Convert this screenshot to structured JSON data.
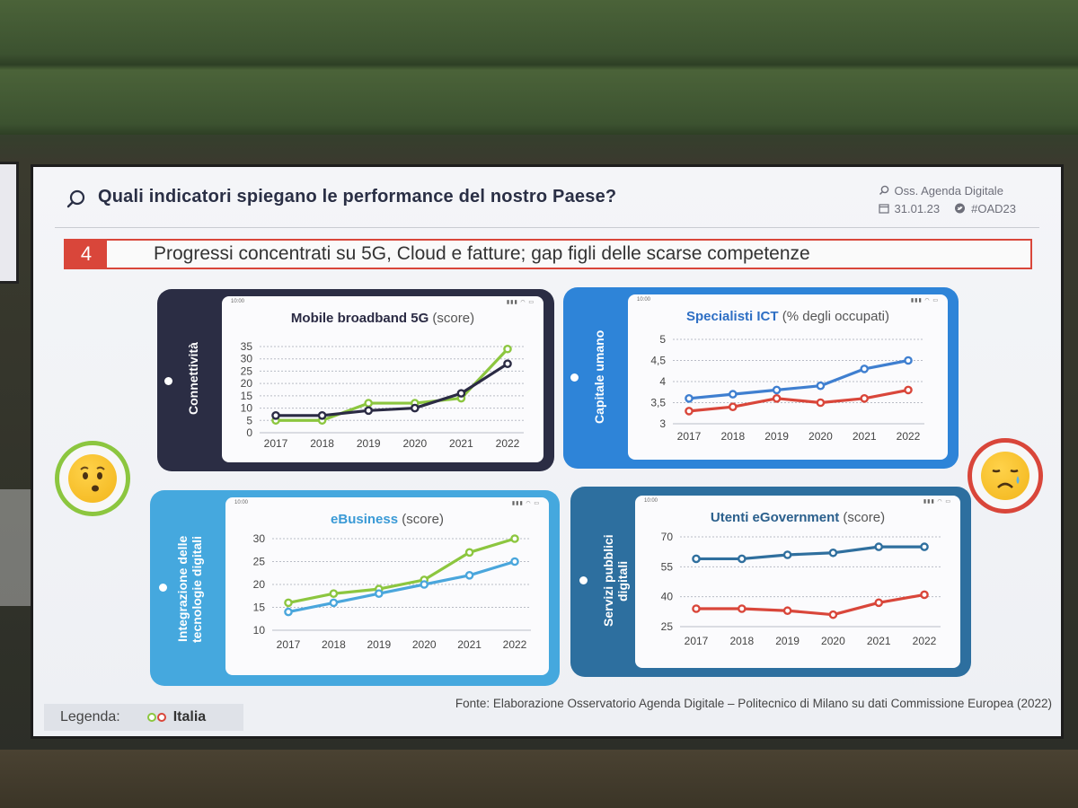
{
  "slide": {
    "title": "Quali indicatori spiegano le performance del nostro Paese?",
    "meta": {
      "org": "Oss. Agenda Digitale",
      "date": "31.01.23",
      "hashtag": "#OAD23"
    },
    "banner": {
      "number": "4",
      "text": "Progressi concentrati su 5G, Cloud e fatture; gap figli delle scarse competenze"
    },
    "legend": {
      "label": "Legenda:",
      "country": "Italia"
    },
    "source": "Fonte: Elaborazione Osservatorio Agenda Digitale – Politecnico di Milano su dati Commissione Europea (2022)",
    "status_time": "10:00"
  },
  "cards": {
    "c1": {
      "band": "Connettività",
      "title": "Mobile broadband 5G",
      "unit": "(score)"
    },
    "c2": {
      "band": "Capitale umano",
      "title": "Specialisti ICT",
      "unit": "(% degli occupati)"
    },
    "c3": {
      "band": "Integrazione delle tecnologie digitali",
      "title": "eBusiness",
      "unit": "(score)"
    },
    "c4": {
      "band": "Servizi pubblici digitali",
      "title": "Utenti eGovernment",
      "unit": "(score)"
    }
  },
  "colors": {
    "italia_green": "#8cc63f",
    "italia_red": "#d9463a",
    "eu_dark": "#2b2b44",
    "eu_blue": "#3f7fd0",
    "eu_light": "#4aa6dc",
    "eu_teal": "#2f6f9e",
    "band_dark": "#2b2d44",
    "band_blue": "#2e84d8",
    "band_light": "#45a8de",
    "band_teal": "#2d6f9f"
  },
  "icons": {
    "title": "search-icon",
    "org": "search-icon",
    "date": "calendar-icon",
    "hashtag": "twitter-icon",
    "happy": "hushed-face-icon",
    "sad": "sad-face-icon"
  },
  "chart_data": [
    {
      "type": "line",
      "title": "Mobile broadband 5G",
      "ylabel": "score",
      "x": [
        "2017",
        "2018",
        "2019",
        "2020",
        "2021",
        "2022"
      ],
      "yticks": [
        "0",
        "5",
        "10",
        "15",
        "20",
        "25",
        "30",
        "35"
      ],
      "ylim": [
        0,
        35
      ],
      "series": [
        {
          "values": [
            5,
            5,
            12,
            12,
            14,
            34
          ],
          "color": "#8cc63f"
        },
        {
          "values": [
            7,
            7,
            9,
            10,
            16,
            28
          ],
          "color": "#2b2b44"
        }
      ]
    },
    {
      "type": "line",
      "title": "Specialisti ICT",
      "ylabel": "% degli occupati",
      "x": [
        "2017",
        "2018",
        "2019",
        "2020",
        "2021",
        "2022"
      ],
      "yticks": [
        "3",
        "3,5",
        "4",
        "4,5",
        "5"
      ],
      "ylim": [
        3,
        5
      ],
      "series": [
        {
          "values": [
            3.6,
            3.7,
            3.8,
            3.9,
            4.3,
            4.5
          ],
          "color": "#3f7fd0"
        },
        {
          "values": [
            3.3,
            3.4,
            3.6,
            3.5,
            3.6,
            3.8
          ],
          "color": "#d9463a"
        }
      ]
    },
    {
      "type": "line",
      "title": "eBusiness",
      "ylabel": "score",
      "x": [
        "2017",
        "2018",
        "2019",
        "2020",
        "2021",
        "2022"
      ],
      "yticks": [
        "10",
        "15",
        "20",
        "25",
        "30"
      ],
      "ylim": [
        10,
        30
      ],
      "series": [
        {
          "values": [
            16,
            18,
            19,
            21,
            27,
            30
          ],
          "color": "#8cc63f"
        },
        {
          "values": [
            14,
            16,
            18,
            20,
            22,
            25
          ],
          "color": "#4aa6dc"
        }
      ]
    },
    {
      "type": "line",
      "title": "Utenti eGovernment",
      "ylabel": "score",
      "x": [
        "2017",
        "2018",
        "2019",
        "2020",
        "2021",
        "2022"
      ],
      "yticks": [
        "25",
        "40",
        "55",
        "70"
      ],
      "ylim": [
        25,
        70
      ],
      "series": [
        {
          "values": [
            59,
            59,
            61,
            62,
            65,
            65
          ],
          "color": "#2f6f9e"
        },
        {
          "values": [
            34,
            34,
            33,
            31,
            37,
            41
          ],
          "color": "#d9463a"
        }
      ]
    }
  ]
}
